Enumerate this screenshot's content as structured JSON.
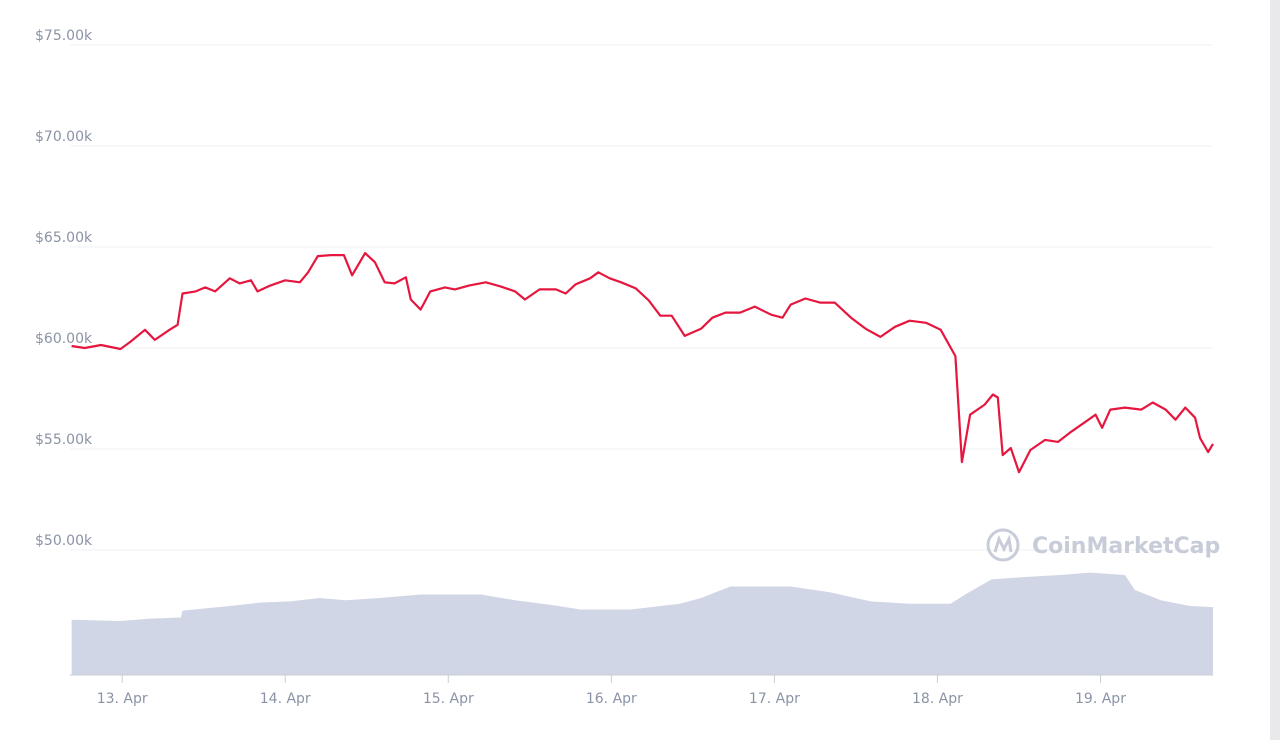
{
  "chart_data": {
    "type": "line",
    "xlim": [
      12.68,
      19.69
    ],
    "xticks": [
      {
        "value": 13,
        "label": "13. Apr"
      },
      {
        "value": 14,
        "label": "14. Apr"
      },
      {
        "value": 15,
        "label": "15. Apr"
      },
      {
        "value": 16,
        "label": "16. Apr"
      },
      {
        "value": 17,
        "label": "17. Apr"
      },
      {
        "value": 18,
        "label": "18. Apr"
      },
      {
        "value": 19,
        "label": "19. Apr"
      }
    ],
    "ylim": [
      50000,
      75000
    ],
    "yticks": [
      {
        "value": 50000,
        "label": "$50.00k"
      },
      {
        "value": 55000,
        "label": "$55.00k"
      },
      {
        "value": 60000,
        "label": "$60.00k"
      },
      {
        "value": 65000,
        "label": "$65.00k"
      },
      {
        "value": 70000,
        "label": "$70.00k"
      },
      {
        "value": 75000,
        "label": "$75.00k"
      }
    ],
    "grid": true,
    "series": [
      {
        "color": "#e5173f",
        "x": [
          12.69,
          12.77,
          12.87,
          12.99,
          13.05,
          13.14,
          13.2,
          13.29,
          13.34,
          13.37,
          13.45,
          13.51,
          13.57,
          13.66,
          13.72,
          13.79,
          13.83,
          13.91,
          14,
          14.09,
          14.14,
          14.2,
          14.28,
          14.36,
          14.41,
          14.49,
          14.55,
          14.61,
          14.67,
          14.74,
          14.77,
          14.83,
          14.89,
          14.98,
          15.04,
          15.13,
          15.23,
          15.32,
          15.41,
          15.47,
          15.56,
          15.66,
          15.72,
          15.78,
          15.87,
          15.92,
          15.99,
          16.06,
          16.15,
          16.23,
          16.3,
          16.37,
          16.45,
          16.55,
          16.62,
          16.7,
          16.79,
          16.88,
          16.98,
          17.05,
          17.1,
          17.19,
          17.28,
          17.37,
          17.47,
          17.56,
          17.65,
          17.74,
          17.83,
          17.93,
          18.02,
          18.11,
          18.15,
          18.2,
          18.29,
          18.34,
          18.37,
          18.4,
          18.45,
          18.5,
          18.57,
          18.66,
          18.74,
          18.82,
          18.89,
          18.97,
          19.01,
          19.06,
          19.15,
          19.25,
          19.32,
          19.4,
          19.46,
          19.52,
          19.58,
          19.61,
          19.66,
          19.69
        ],
        "values": [
          60100,
          60000,
          60150,
          59950,
          60300,
          60900,
          60400,
          60900,
          61150,
          62700,
          62800,
          63000,
          62800,
          63450,
          63200,
          63350,
          62800,
          63100,
          63350,
          63250,
          63750,
          64550,
          64600,
          64600,
          63600,
          64700,
          64250,
          63250,
          63200,
          63500,
          62400,
          61900,
          62800,
          63000,
          62900,
          63100,
          63250,
          63050,
          62800,
          62400,
          62900,
          62900,
          62700,
          63150,
          63450,
          63750,
          63450,
          63250,
          62950,
          62350,
          61600,
          61600,
          60600,
          60950,
          61500,
          61750,
          61750,
          62050,
          61650,
          61500,
          62150,
          62450,
          62250,
          62250,
          61500,
          60950,
          60550,
          61050,
          61350,
          61250,
          60900,
          59600,
          54350,
          56700,
          57200,
          57700,
          57550,
          54700,
          55050,
          53850,
          54950,
          55450,
          55350,
          55850,
          56250,
          56700,
          56050,
          56950,
          57050,
          56950,
          57300,
          56950,
          56450,
          57050,
          56550,
          55550,
          54850,
          55250
        ]
      }
    ],
    "volume": {
      "color": "#d1d6e6",
      "ylim": [
        0,
        100
      ],
      "x": [
        12.69,
        12.99,
        13.17,
        13.36,
        13.37,
        13.66,
        13.85,
        14.03,
        14.21,
        14.37,
        14.58,
        14.83,
        15.2,
        15.41,
        15.63,
        15.81,
        16.12,
        16.42,
        16.55,
        16.73,
        17.1,
        17.34,
        17.59,
        17.83,
        18.08,
        18.17,
        18.33,
        18.51,
        18.75,
        18.94,
        19.15,
        19.21,
        19.37,
        19.55,
        19.69
      ],
      "values": [
        48,
        47,
        49,
        50,
        56,
        60,
        63,
        64,
        67,
        65,
        67,
        70,
        70,
        65,
        61,
        57,
        57,
        62,
        67,
        77,
        77,
        72,
        64,
        62,
        62,
        70,
        83,
        85,
        87,
        89,
        87,
        74,
        65,
        60,
        59
      ]
    },
    "watermark": "CoinMarketCap"
  }
}
